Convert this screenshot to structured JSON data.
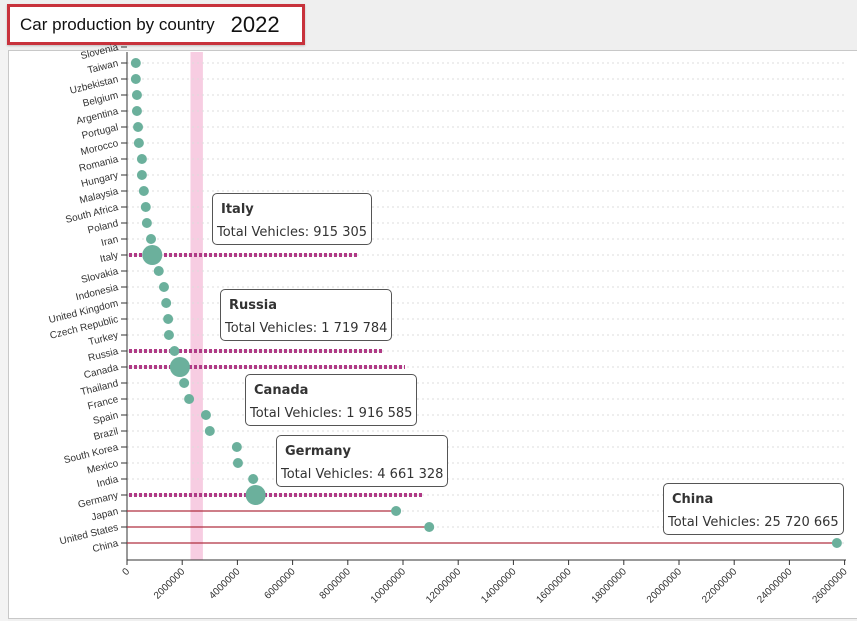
{
  "header": {
    "title": "Car production by country",
    "year": "2022"
  },
  "colors": {
    "dot": "#6bb09c",
    "highlight_line": "#b03a86",
    "baseline": "#b03040",
    "band": "#f7cde2",
    "title_border": "#c8323c"
  },
  "tooltips": [
    {
      "country": "Italy",
      "label": "Total Vehicles: 915 305"
    },
    {
      "country": "Russia",
      "label": "Total Vehicles: 1 719 784"
    },
    {
      "country": "Canada",
      "label": "Total Vehicles: 1 916 585"
    },
    {
      "country": "Germany",
      "label": "Total Vehicles: 4 661 328"
    },
    {
      "country": "China",
      "label": "Total Vehicles: 25 720 665"
    }
  ],
  "chart_data": {
    "type": "scatter",
    "title": "Car production by country 2022",
    "xlabel": "",
    "ylabel": "",
    "xlim": [
      0,
      26000000
    ],
    "x_ticks": [
      "0",
      "2000000",
      "4000000",
      "6000000",
      "8000000",
      "10000000",
      "12000000",
      "14000000",
      "16000000",
      "18000000",
      "20000000",
      "22000000",
      "24000000",
      "26000000"
    ],
    "grid": true,
    "band_range": [
      2300000,
      2750000
    ],
    "categories": [
      "Slovenia",
      "Taiwan",
      "Uzbekistan",
      "Belgium",
      "Argentina",
      "Portugal",
      "Morocco",
      "Romania",
      "Hungary",
      "Malaysia",
      "South Africa",
      "Poland",
      "Iran",
      "Italy",
      "Slovakia",
      "Indonesia",
      "United Kingdom",
      "Czech Republic",
      "Turkey",
      "Russia",
      "Canada",
      "Thailand",
      "France",
      "Spain",
      "Brazil",
      "South Korea",
      "Mexico",
      "India",
      "Germany",
      "Japan",
      "United States",
      "China"
    ],
    "values": [
      null,
      320000,
      320000,
      360000,
      360000,
      400000,
      430000,
      540000,
      540000,
      610000,
      680000,
      720000,
      870000,
      915305,
      1150000,
      1340000,
      1420000,
      1490000,
      1520000,
      1719784,
      1916585,
      2070000,
      2250000,
      2860000,
      3000000,
      3980000,
      4020000,
      4570000,
      4661328,
      9750000,
      10950000,
      25720665
    ],
    "highlighted_dotted": [
      "Italy",
      "Russia",
      "Canada",
      "Germany"
    ],
    "highlighted_solid": [
      "Japan",
      "United States",
      "China"
    ],
    "large_markers": [
      "Italy",
      "Canada",
      "Germany"
    ]
  }
}
